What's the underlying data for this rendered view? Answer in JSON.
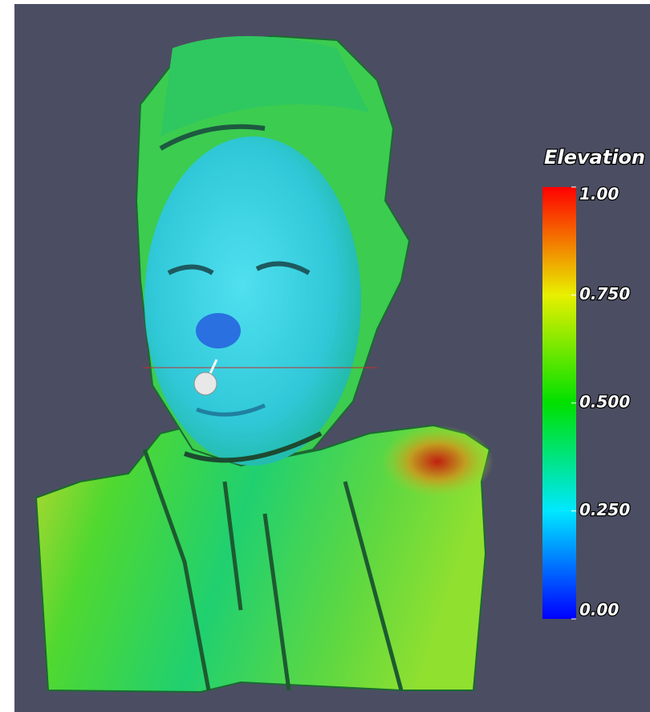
{
  "color_legend": {
    "title": "Elevation",
    "range": [
      0,
      1
    ],
    "ticks": [
      {
        "value": 1,
        "label": "1.00"
      },
      {
        "value": 0.75,
        "label": "0.750"
      },
      {
        "value": 0.5,
        "label": "0.500"
      },
      {
        "value": 0.25,
        "label": "0.250"
      },
      {
        "value": 0,
        "label": "0.00"
      }
    ]
  }
}
